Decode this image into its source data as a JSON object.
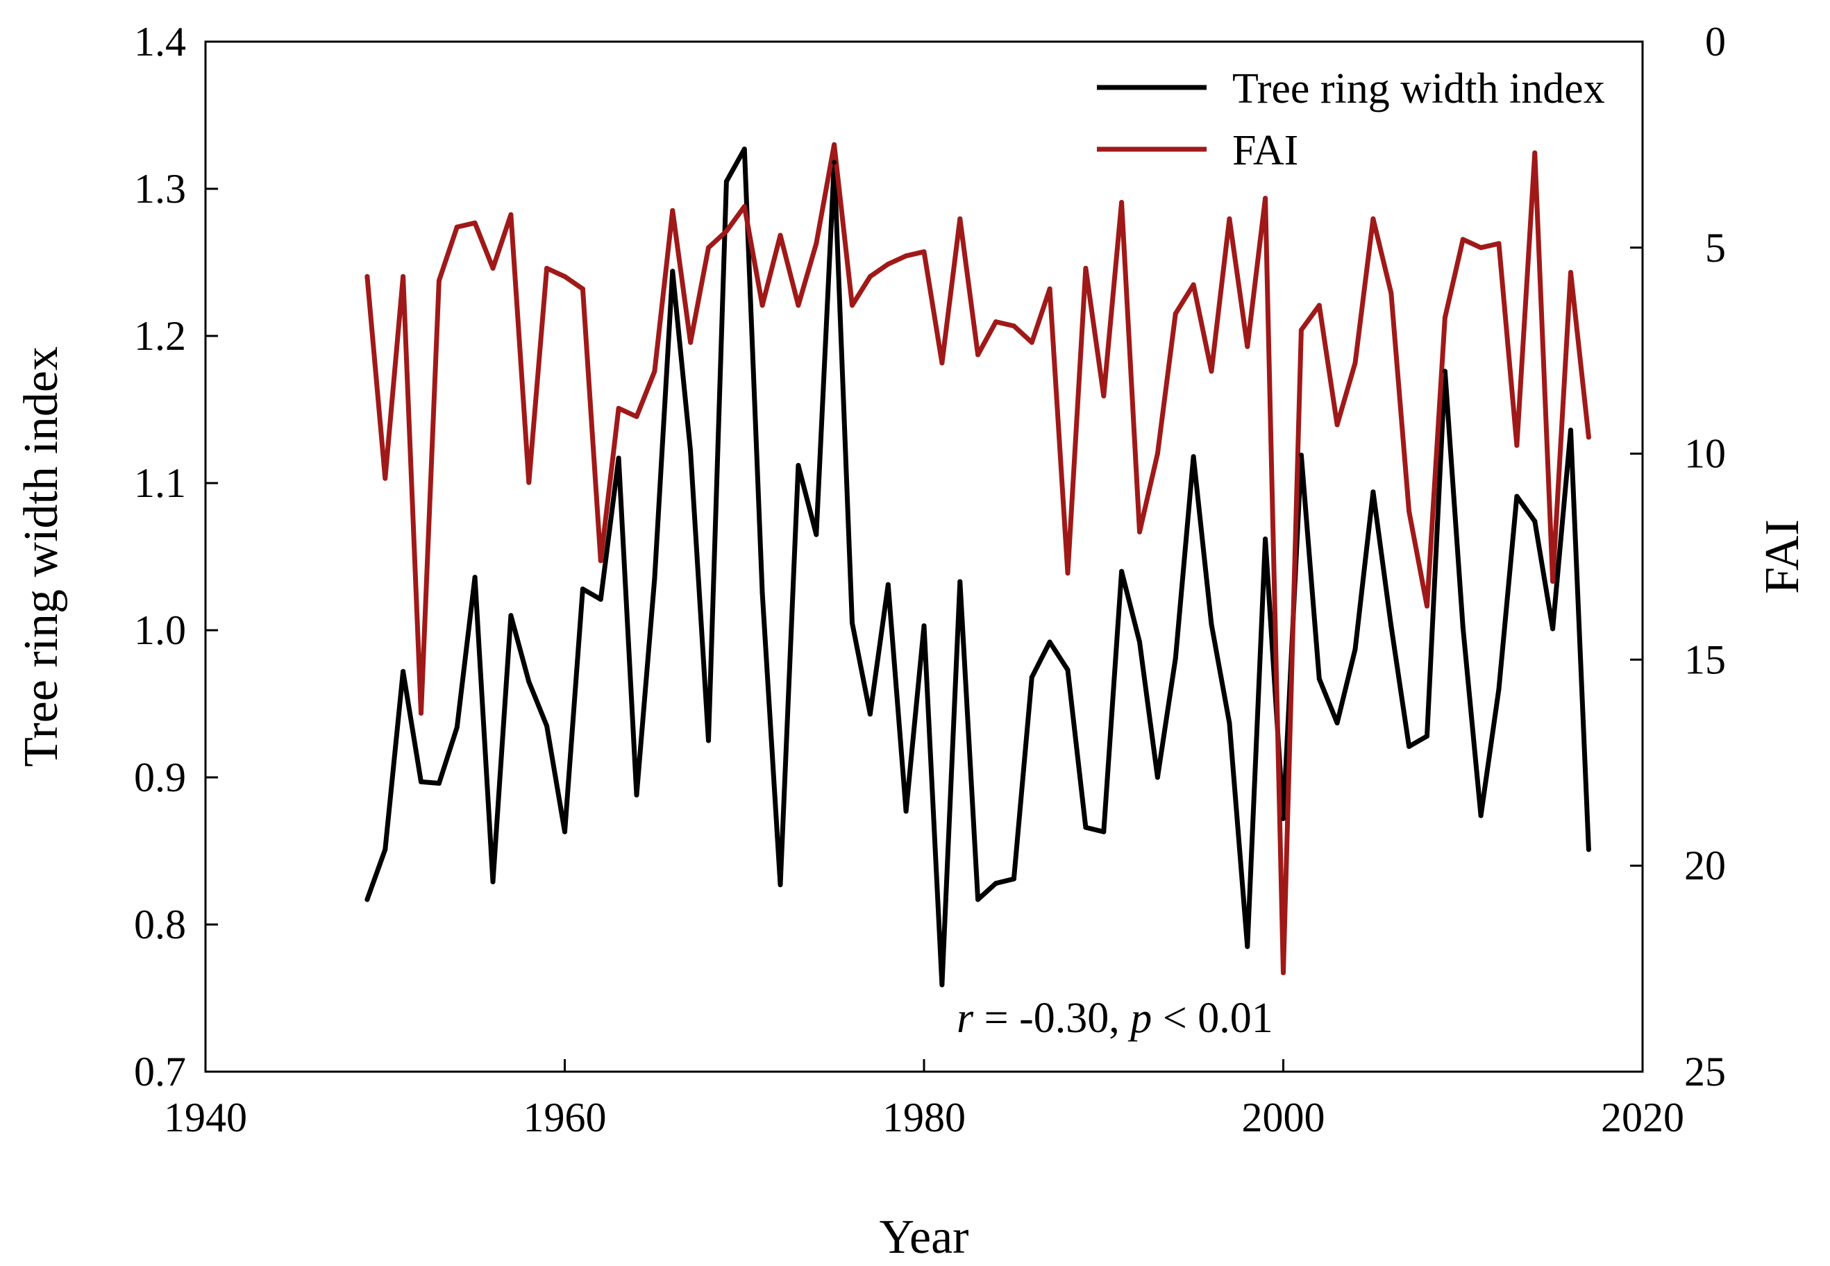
{
  "chart_data": {
    "type": "line",
    "xlabel": "Year",
    "ylabel_left": "Tree ring width index",
    "ylabel_right": "FAI",
    "xlim": [
      1940,
      2020
    ],
    "ylim_left": [
      0.7,
      1.4
    ],
    "ylim_right": [
      0,
      25
    ],
    "right_axis_inverted": true,
    "xticks": [
      "1940",
      "1960",
      "1980",
      "2000",
      "2020"
    ],
    "yticks_left": [
      "0.7",
      "0.8",
      "0.9",
      "1.0",
      "1.1",
      "1.2",
      "1.3",
      "1.4"
    ],
    "yticks_right": [
      "0",
      "5",
      "10",
      "15",
      "20",
      "25"
    ],
    "legend_position": "top-right",
    "grid": false,
    "annotation": {
      "r_symbol": "r",
      "r_text": " = -0.30, ",
      "p_symbol": "p",
      "p_text": " < 0.01"
    },
    "x": [
      1949,
      1950,
      1951,
      1952,
      1953,
      1954,
      1955,
      1956,
      1957,
      1958,
      1959,
      1960,
      1961,
      1962,
      1963,
      1964,
      1965,
      1966,
      1967,
      1968,
      1969,
      1970,
      1971,
      1972,
      1973,
      1974,
      1975,
      1976,
      1977,
      1978,
      1979,
      1980,
      1981,
      1982,
      1983,
      1984,
      1985,
      1986,
      1987,
      1988,
      1989,
      1990,
      1991,
      1992,
      1993,
      1994,
      1995,
      1996,
      1997,
      1998,
      1999,
      2000,
      2001,
      2002,
      2003,
      2004,
      2005,
      2006,
      2007,
      2008,
      2009,
      2010,
      2011,
      2012,
      2013,
      2014,
      2015,
      2016,
      2017
    ],
    "series": [
      {
        "name": "Tree ring width index",
        "axis": "left",
        "color": "#000000",
        "values": [
          0.817,
          0.851,
          0.972,
          0.897,
          0.896,
          0.934,
          1.036,
          0.829,
          1.01,
          0.965,
          0.935,
          0.863,
          1.028,
          1.021,
          1.117,
          0.888,
          1.035,
          1.244,
          1.122,
          0.925,
          1.305,
          1.327,
          1.025,
          0.827,
          1.112,
          1.065,
          1.318,
          1.005,
          0.943,
          1.031,
          0.877,
          1.003,
          0.759,
          1.033,
          0.817,
          0.828,
          0.831,
          0.968,
          0.992,
          0.973,
          0.866,
          0.863,
          1.04,
          0.992,
          0.9,
          0.981,
          1.118,
          1.004,
          0.937,
          0.785,
          1.062,
          0.872,
          1.119,
          0.967,
          0.937,
          0.987,
          1.094,
          1.003,
          0.921,
          0.928,
          1.176,
          1.002,
          0.874,
          0.96,
          1.091,
          1.074,
          1.001,
          1.136,
          0.851
        ]
      },
      {
        "name": "FAI",
        "axis": "right",
        "color": "#a01919",
        "values": [
          5.7,
          10.6,
          5.7,
          16.3,
          5.8,
          4.5,
          4.4,
          5.5,
          4.2,
          10.7,
          5.5,
          5.7,
          6.0,
          12.6,
          8.9,
          9.1,
          8.0,
          4.1,
          7.3,
          5.0,
          4.6,
          4.0,
          6.4,
          4.7,
          6.4,
          4.9,
          2.5,
          6.4,
          5.7,
          5.4,
          5.2,
          5.1,
          7.8,
          4.3,
          7.6,
          6.8,
          6.9,
          7.3,
          6.0,
          12.9,
          5.5,
          8.6,
          3.9,
          11.9,
          10.0,
          6.6,
          5.9,
          8.0,
          4.3,
          7.4,
          3.8,
          22.6,
          7.0,
          6.4,
          9.3,
          7.8,
          4.3,
          6.1,
          11.4,
          13.7,
          6.7,
          4.8,
          5.0,
          4.9,
          9.8,
          2.7,
          13.1,
          5.6,
          9.6
        ]
      }
    ]
  }
}
